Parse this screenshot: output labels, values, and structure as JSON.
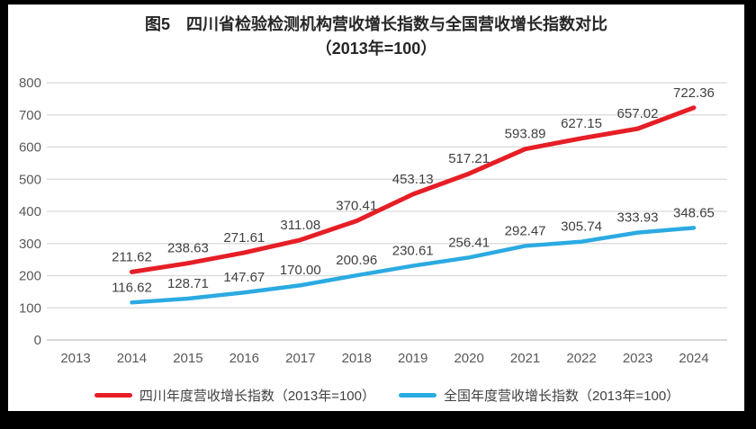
{
  "title": {
    "line1": "图5　四川省检验检测机构营收增长指数与全国营收增长指数对比",
    "line2": "（2013年=100）"
  },
  "colors": {
    "sichuan_line": "#e61e26",
    "national_line": "#2baae2",
    "gridline": "#d9d9d9",
    "zero_line": "#bfbfbf",
    "axis_text": "#595959",
    "data_label_text": "#404040",
    "title_text": "#262626",
    "frame": "#000000"
  },
  "chart_data": {
    "type": "line",
    "title": "图5 四川省检验检测机构营收增长指数与全国营收增长指数对比（2013年=100）",
    "x_ticks": [
      2013,
      2014,
      2015,
      2016,
      2017,
      2018,
      2019,
      2020,
      2021,
      2022,
      2023,
      2024
    ],
    "y_ticks": [
      0,
      100,
      200,
      300,
      400,
      500,
      600,
      700,
      800
    ],
    "ylim": [
      0,
      800
    ],
    "xlabel": "",
    "ylabel": "",
    "grid": true,
    "data_labels": true,
    "legend_position": "bottom",
    "series": [
      {
        "name": "四川年度营收增长指数（2013年=100）",
        "color": "#e61e26",
        "x": [
          2014,
          2015,
          2016,
          2017,
          2018,
          2019,
          2020,
          2021,
          2022,
          2023,
          2024
        ],
        "values": [
          211.62,
          238.63,
          271.61,
          311.08,
          370.41,
          453.13,
          517.21,
          593.89,
          627.15,
          657.02,
          722.36
        ]
      },
      {
        "name": "全国年度营收增长指数（2013年=100）",
        "color": "#2baae2",
        "x": [
          2014,
          2015,
          2016,
          2017,
          2018,
          2019,
          2020,
          2021,
          2022,
          2023,
          2024
        ],
        "values": [
          116.62,
          128.71,
          147.67,
          170.0,
          200.96,
          230.61,
          256.41,
          292.47,
          305.74,
          333.93,
          348.65
        ]
      }
    ]
  },
  "legend": {
    "items": [
      {
        "label": "四川年度营收增长指数（2013年=100）",
        "color": "#e61e26"
      },
      {
        "label": "全国年度营收增长指数（2013年=100）",
        "color": "#2baae2"
      }
    ]
  }
}
